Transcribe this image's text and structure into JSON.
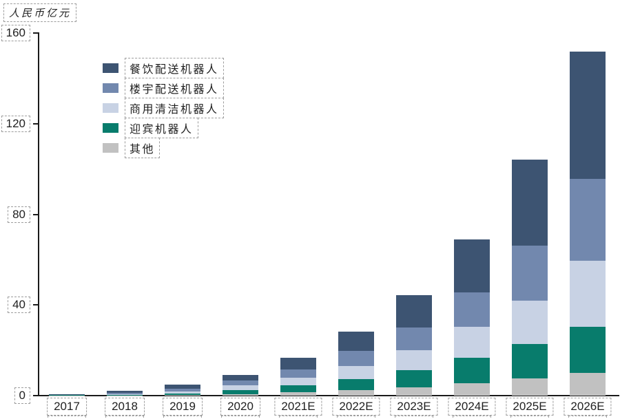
{
  "axis": {
    "unit_label": "人民币亿元",
    "y_tick_labels": [
      "0",
      "40",
      "80",
      "120",
      "160"
    ]
  },
  "legend": {
    "items": [
      "餐饮配送机器人",
      "楼宇配送机器人",
      "商用清洁机器人",
      "迎宾机器人",
      "其他"
    ]
  },
  "chart_data": {
    "type": "bar",
    "stacked": true,
    "title": "人民币亿元",
    "ylabel": "人民币亿元",
    "xlabel": "",
    "ylim": [
      0,
      160
    ],
    "yticks": [
      0,
      40,
      80,
      120,
      160
    ],
    "grid": false,
    "legend_position": "upper-left-inside",
    "categories": [
      "2017",
      "2018",
      "2019",
      "2020",
      "2021E",
      "2022E",
      "2023E",
      "2024E",
      "2025E",
      "2026E"
    ],
    "series": [
      {
        "name": "餐饮配送机器人",
        "color": "#3d5472",
        "values": [
          0.1,
          0.8,
          1.8,
          2.4,
          5.2,
          8.5,
          14.2,
          23.4,
          38.0,
          56.0
        ]
      },
      {
        "name": "楼宇配送机器人",
        "color": "#7288ae",
        "values": [
          0.1,
          0.5,
          1.2,
          2.1,
          3.6,
          6.6,
          10.1,
          15.2,
          24.3,
          36.3
        ]
      },
      {
        "name": "商用清洁机器人",
        "color": "#c8d2e4",
        "values": [
          0.1,
          0.4,
          0.9,
          2.1,
          3.3,
          5.8,
          8.8,
          13.7,
          19.1,
          29.1
        ]
      },
      {
        "name": "迎宾机器人",
        "color": "#087c6c",
        "values": [
          0.1,
          0.2,
          0.7,
          1.8,
          3.0,
          4.9,
          7.6,
          11.2,
          15.2,
          20.3
        ]
      },
      {
        "name": "其他",
        "color": "#c1c1c1",
        "values": [
          0.1,
          0.1,
          0.3,
          0.6,
          1.5,
          2.4,
          3.6,
          5.5,
          7.6,
          10.0
        ]
      }
    ],
    "stack_order_bottom_to_top": [
      "其他",
      "迎宾机器人",
      "商用清洁机器人",
      "楼宇配送机器人",
      "餐饮配送机器人"
    ]
  }
}
